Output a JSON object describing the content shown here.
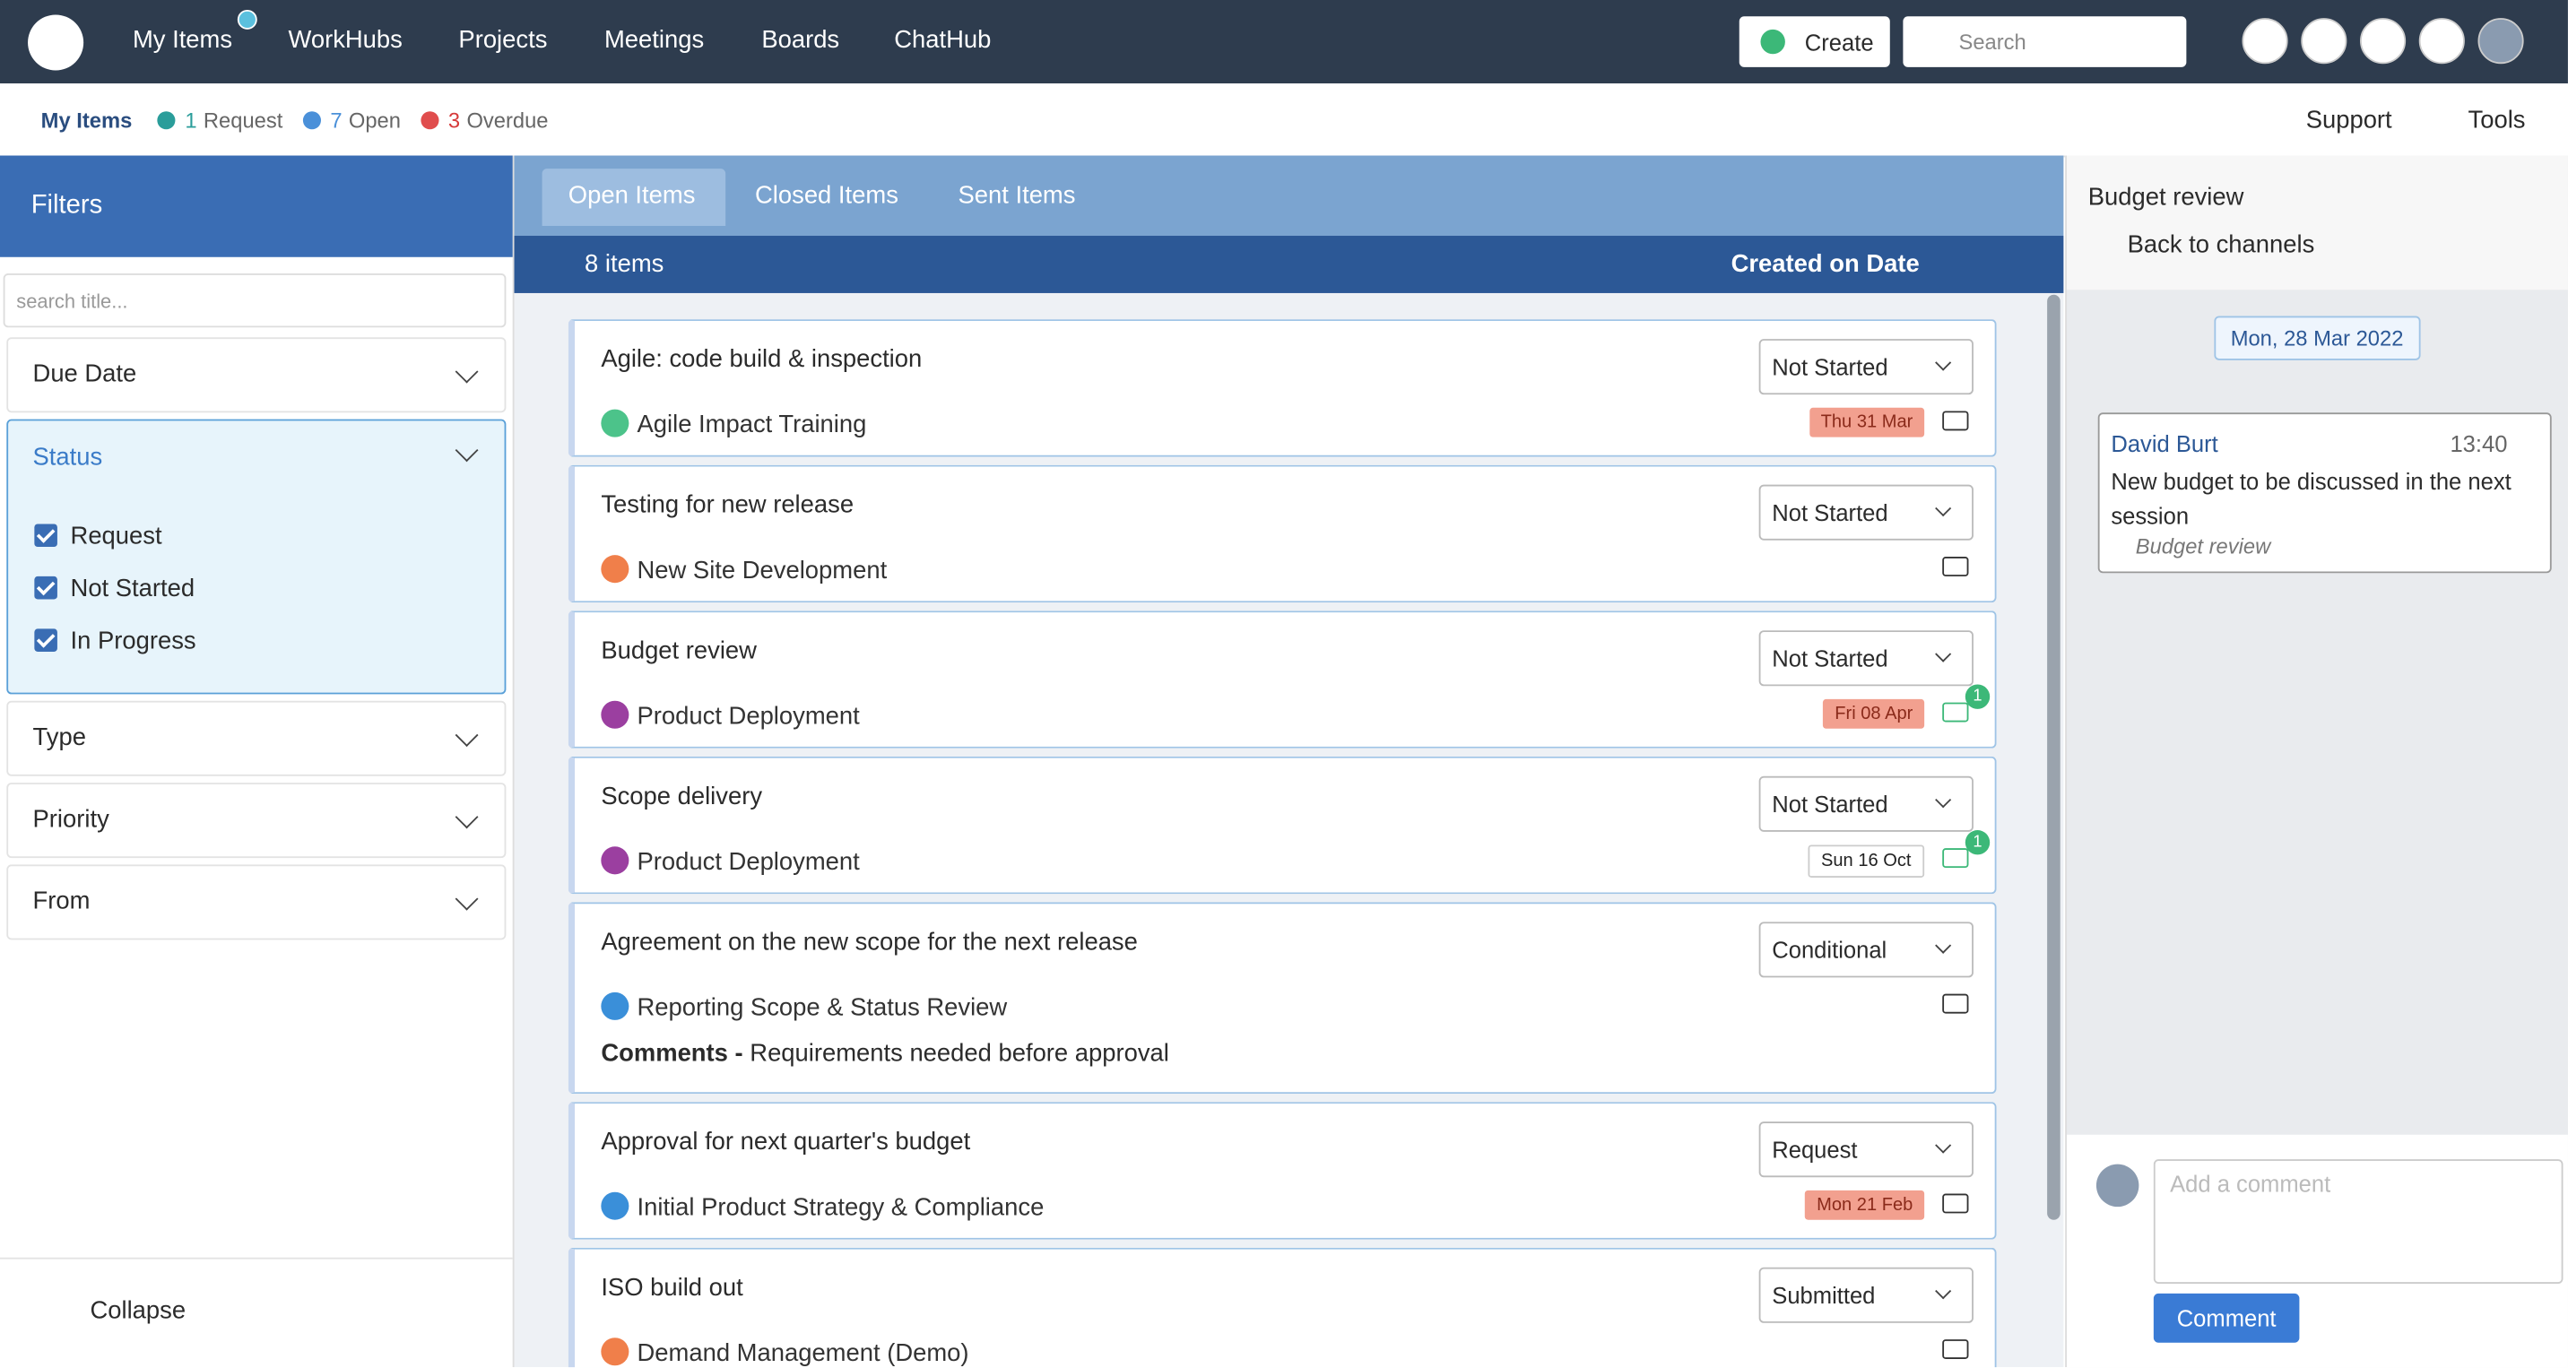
{
  "nav": {
    "items": [
      "My Items",
      "WorkHubs",
      "Projects",
      "Meetings",
      "Boards",
      "ChatHub"
    ],
    "create": "Create",
    "search": "Search"
  },
  "subbar": {
    "title": "My Items",
    "stats": [
      {
        "count": 1,
        "label": "Request"
      },
      {
        "count": 7,
        "label": "Open"
      },
      {
        "count": 3,
        "label": "Overdue"
      }
    ],
    "support": "Support",
    "tools": "Tools"
  },
  "filters": {
    "title": "Filters",
    "search": "search title...",
    "sections": [
      "Due Date",
      "Status",
      "Type",
      "Priority",
      "From"
    ],
    "status_options": [
      "Request",
      "Not Started",
      "In Progress"
    ],
    "collapse": "Collapse"
  },
  "list": {
    "tabs": [
      "Open Items",
      "Closed Items",
      "Sent Items"
    ],
    "count": "8 items",
    "sort": "Created on Date",
    "items": [
      {
        "title": "Agile: code build & inspection",
        "project": "Agile Impact Training",
        "status": "Not Started",
        "date": "Thu 31 Mar",
        "overdue": true
      },
      {
        "title": "Testing for new release",
        "project": "New Site Development",
        "status": "Not Started"
      },
      {
        "title": "Budget review",
        "project": "Product Deployment",
        "status": "Not Started",
        "date": "Fri 08 Apr",
        "overdue": true,
        "comments": 1
      },
      {
        "title": "Scope delivery",
        "project": "Product Deployment",
        "status": "Not Started",
        "date": "Sun 16 Oct",
        "overdue": false,
        "comments": 1
      },
      {
        "title": "Agreement on the new scope for the next release",
        "project": "Reporting Scope & Status Review",
        "status": "Conditional",
        "note_label": "Comments -",
        "note": "Requirements needed before approval"
      },
      {
        "title": "Approval for next quarter's budget",
        "project": "Initial Product Strategy & Compliance",
        "status": "Request",
        "date": "Mon 21 Feb",
        "overdue": true
      },
      {
        "title": "ISO build out",
        "project": "Demand Management (Demo)",
        "status": "Submitted"
      }
    ]
  },
  "chat": {
    "title": "Budget review",
    "back": "Back to channels",
    "date": "Mon, 28 Mar 2022",
    "message": {
      "author": "David Burt",
      "time": "13:40",
      "text": "New budget to be discussed in the next session",
      "ref": "Budget review"
    },
    "input": "Add a comment",
    "button": "Comment"
  }
}
